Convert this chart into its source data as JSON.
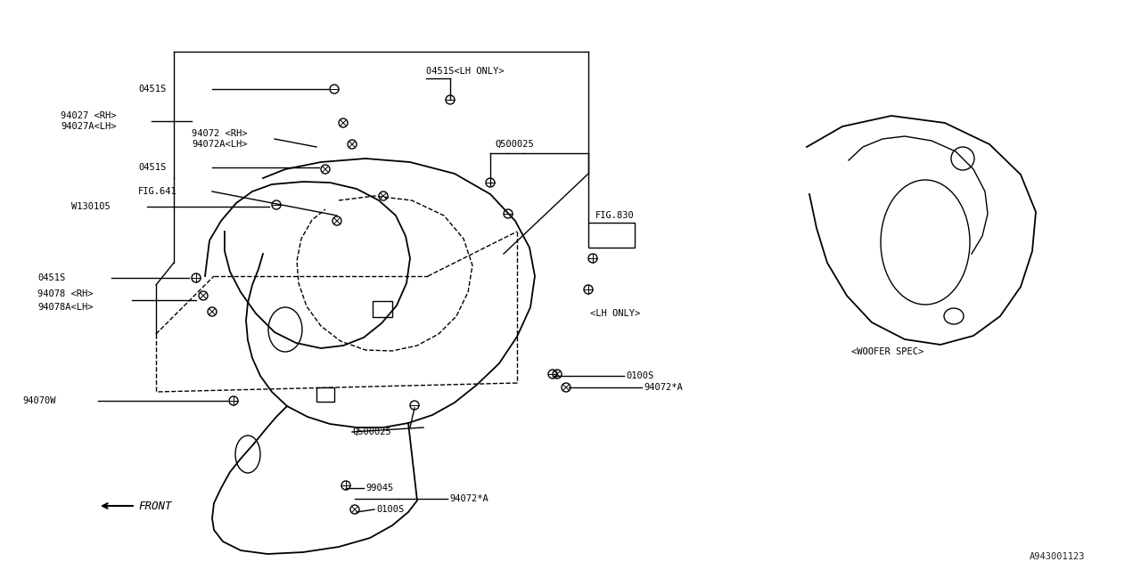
{
  "bg_color": "#ffffff",
  "line_color": "#000000",
  "fig_id": "A943001123",
  "labels": {
    "0451S": "0451S",
    "0451S_LH_ONLY": "0451S<LH ONLY>",
    "94027_RH": "94027 <RH>",
    "94027A_LH": "94027A<LH>",
    "94072_RH": "94072 <RH>",
    "94072A_LH": "94072A<LH>",
    "FIG641": "FIG.641",
    "W130105": "W130105",
    "94078_RH": "94078 <RH>",
    "94078A_LH": "94078A<LH>",
    "94070W": "94070W",
    "Q500025": "Q500025",
    "FIG830": "FIG.830",
    "LH_ONLY": "<LH ONLY>",
    "94072starA": "94072*A",
    "0100S": "0100S",
    "99045": "99045",
    "WOOFER_SPEC": "<WOOFER SPEC>",
    "FRONT": "FRONT"
  }
}
